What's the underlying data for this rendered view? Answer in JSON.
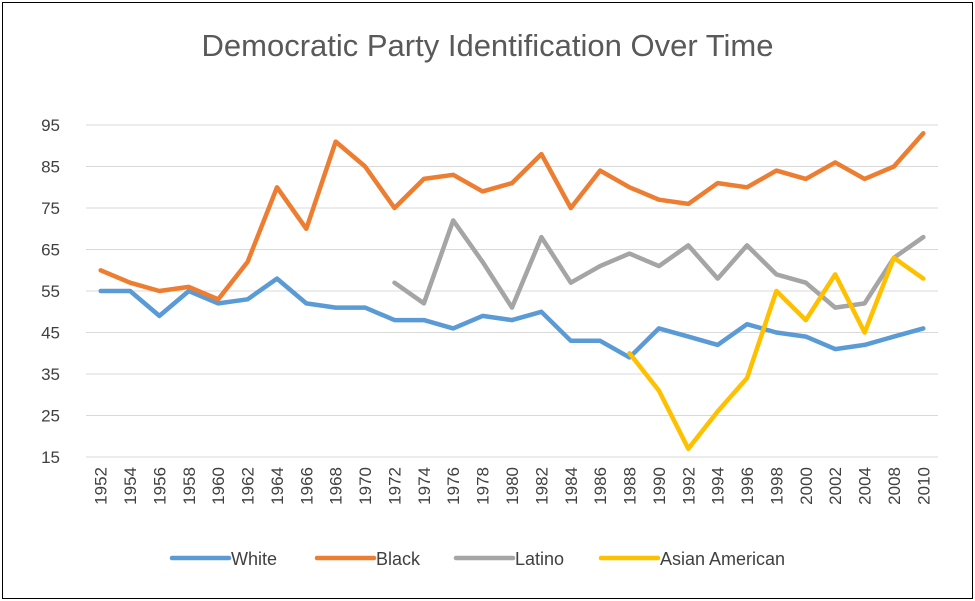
{
  "chart_data": {
    "type": "line",
    "title": "Democratic Party Identification Over Time",
    "xlabel": "",
    "ylabel": "",
    "ylim": [
      15,
      95
    ],
    "yticks": [
      15,
      25,
      35,
      45,
      55,
      65,
      75,
      85,
      95
    ],
    "grid": "horizontal",
    "legend_position": "bottom",
    "categories": [
      "1952",
      "1954",
      "1956",
      "1958",
      "1960",
      "1962",
      "1964",
      "1966",
      "1968",
      "1970",
      "1972",
      "1974",
      "1976",
      "1978",
      "1980",
      "1982",
      "1984",
      "1986",
      "1988",
      "1990",
      "1992",
      "1994",
      "1996",
      "1998",
      "2000",
      "2002",
      "2004",
      "2008",
      "2010"
    ],
    "series": [
      {
        "name": "White",
        "color": "#5B9BD5",
        "values": [
          55,
          55,
          49,
          55,
          52,
          53,
          58,
          52,
          51,
          51,
          48,
          48,
          46,
          49,
          48,
          50,
          43,
          43,
          39,
          46,
          44,
          42,
          47,
          45,
          44,
          41,
          42,
          44,
          46
        ]
      },
      {
        "name": "Black",
        "color": "#ED7D31",
        "values": [
          60,
          57,
          55,
          56,
          53,
          62,
          80,
          70,
          91,
          85,
          75,
          82,
          83,
          79,
          81,
          88,
          75,
          84,
          80,
          77,
          76,
          81,
          80,
          84,
          82,
          86,
          82,
          85,
          93
        ]
      },
      {
        "name": "Latino",
        "color": "#A5A5A5",
        "values": [
          null,
          null,
          null,
          null,
          null,
          null,
          null,
          null,
          null,
          null,
          57,
          52,
          72,
          62,
          51,
          68,
          57,
          61,
          64,
          61,
          66,
          58,
          66,
          59,
          57,
          51,
          52,
          63,
          68
        ]
      },
      {
        "name": "Asian American",
        "color": "#FFC000",
        "values": [
          null,
          null,
          null,
          null,
          null,
          null,
          null,
          null,
          null,
          null,
          null,
          null,
          null,
          null,
          null,
          null,
          null,
          null,
          40,
          31,
          17,
          26,
          34,
          55,
          48,
          59,
          45,
          63,
          58
        ]
      }
    ]
  }
}
